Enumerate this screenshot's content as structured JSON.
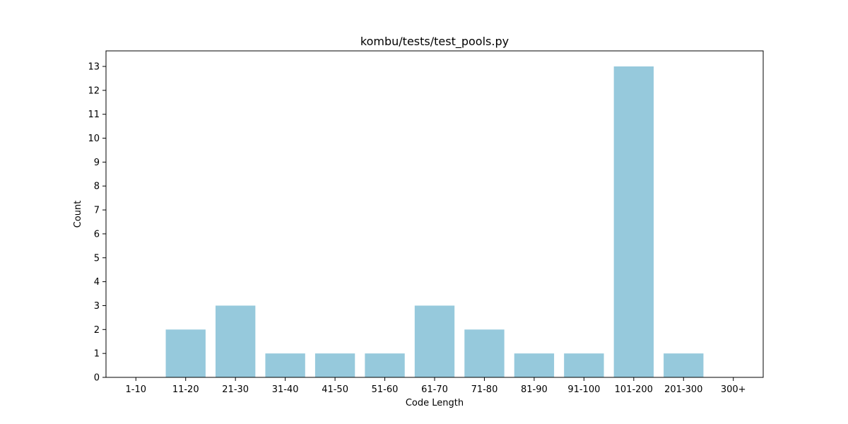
{
  "chart_data": {
    "type": "bar",
    "title": "kombu/tests/test_pools.py",
    "xlabel": "Code Length",
    "ylabel": "Count",
    "categories": [
      "1-10",
      "11-20",
      "21-30",
      "31-40",
      "41-50",
      "51-60",
      "61-70",
      "71-80",
      "81-90",
      "91-100",
      "101-200",
      "201-300",
      "300+"
    ],
    "values": [
      0,
      2,
      3,
      1,
      1,
      1,
      3,
      2,
      1,
      1,
      13,
      1,
      0
    ],
    "yticks": [
      0,
      1,
      2,
      3,
      4,
      5,
      6,
      7,
      8,
      9,
      10,
      11,
      12,
      13
    ],
    "ylim": [
      0,
      13.65
    ],
    "bar_color": "#96c9dc",
    "grid": false,
    "legend": "none"
  }
}
